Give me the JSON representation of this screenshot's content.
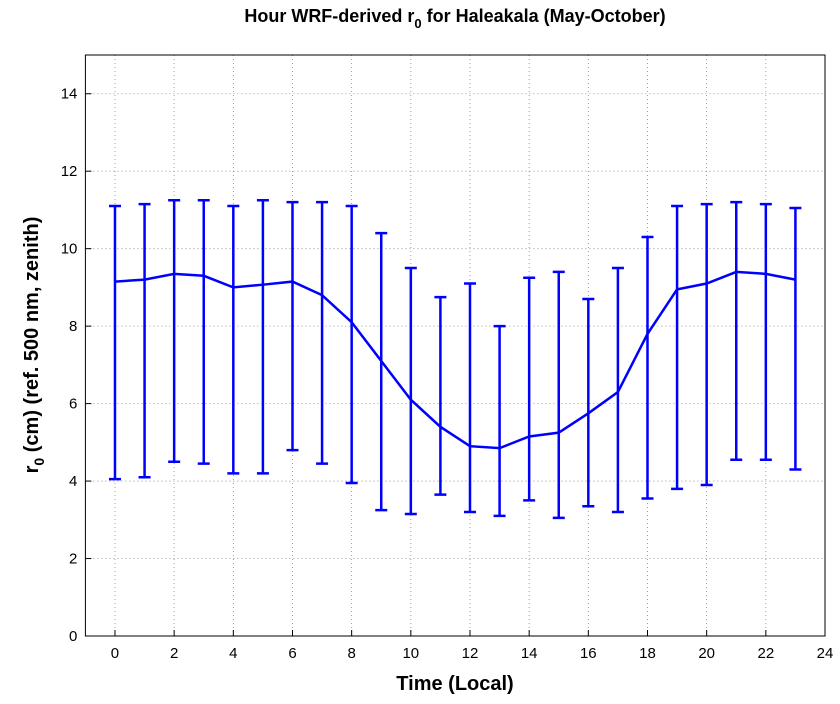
{
  "chart_data": {
    "type": "errorbar",
    "title_parts": [
      "Hour WRF-derived r",
      "0",
      " for Haleakala (May-October)"
    ],
    "xlabel": "Time (Local)",
    "ylabel_parts": [
      "r",
      "0",
      " (cm) (ref. 500 nm, zenith)"
    ],
    "x": [
      0,
      1,
      2,
      3,
      4,
      5,
      6,
      7,
      8,
      9,
      10,
      11,
      12,
      13,
      14,
      15,
      16,
      17,
      18,
      19,
      20,
      21,
      22,
      23
    ],
    "values": [
      9.15,
      9.2,
      9.35,
      9.3,
      9.0,
      9.07,
      9.15,
      8.8,
      8.1,
      7.1,
      6.1,
      5.4,
      4.9,
      4.85,
      5.15,
      5.25,
      5.75,
      6.3,
      7.8,
      8.95,
      9.1,
      9.4,
      9.35,
      9.2
    ],
    "upper": [
      11.1,
      11.15,
      11.25,
      11.25,
      11.1,
      11.25,
      11.2,
      11.2,
      11.1,
      10.4,
      9.5,
      8.75,
      9.1,
      8.0,
      9.25,
      9.4,
      8.7,
      9.5,
      10.3,
      11.1,
      11.15,
      11.2,
      11.15,
      11.05
    ],
    "lower": [
      4.05,
      4.1,
      4.5,
      4.45,
      4.2,
      4.2,
      4.8,
      4.45,
      3.95,
      3.25,
      3.15,
      3.65,
      3.2,
      3.1,
      3.5,
      3.05,
      3.35,
      3.2,
      3.55,
      3.8,
      3.9,
      4.55,
      4.55,
      4.3
    ],
    "color": "#0000ff",
    "xlim": [
      -1,
      24
    ],
    "xticks": [
      0,
      2,
      4,
      6,
      8,
      10,
      12,
      14,
      16,
      18,
      20,
      22,
      24
    ],
    "ylim": [
      0,
      15
    ],
    "yticks": [
      0,
      2,
      4,
      6,
      8,
      10,
      12,
      14
    ],
    "grid": true
  }
}
